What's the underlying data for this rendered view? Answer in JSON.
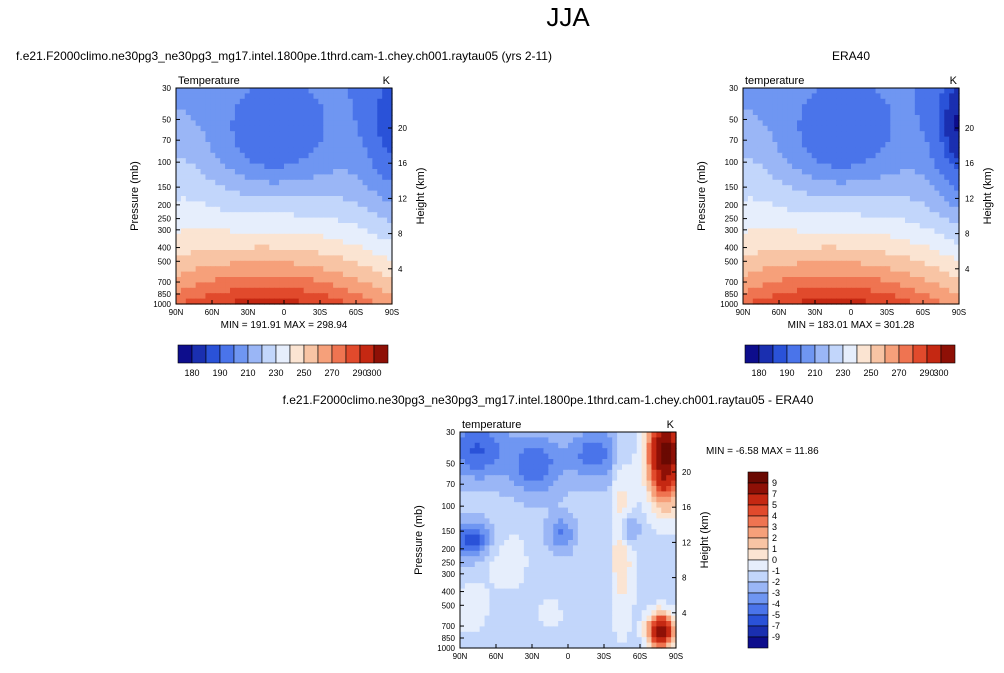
{
  "page": {
    "title": "JJA",
    "colors": {
      "background": "#ffffff",
      "text": "#000000"
    }
  },
  "chart_data": [
    {
      "type": "heatmap",
      "id": "model",
      "title": "f.e21.F2000climo.ne30pg3_ne30pg3_mg17.intel.1800pe.1thrd.cam-1.chey.ch001.raytau05 (yrs 2-11)",
      "left_label": "Temperature",
      "right_label": "K",
      "ylabel": "Pressure (mb)",
      "ylabel_right": "Height (km)",
      "xlabel": "",
      "x_ticks": [
        "90N",
        "60N",
        "30N",
        "0",
        "30S",
        "60S",
        "90S"
      ],
      "x_values": [
        90,
        60,
        30,
        0,
        -30,
        -60,
        -90
      ],
      "y_ticks": [
        "30",
        "50",
        "70",
        "100",
        "150",
        "200",
        "250",
        "300",
        "400",
        "500",
        "700",
        "850",
        "1000"
      ],
      "y_values": [
        30,
        50,
        70,
        100,
        150,
        200,
        250,
        300,
        400,
        500,
        700,
        850,
        1000
      ],
      "y_right_ticks": [
        "4",
        "8",
        "12",
        "16",
        "20"
      ],
      "y_right_values": [
        4,
        8,
        12,
        16,
        20
      ],
      "y_scale": "log",
      "ylim": [
        1000,
        30
      ],
      "xlim": [
        90,
        -90
      ],
      "stats_text": "MIN = 191.91   MAX = 298.94",
      "min": 191.91,
      "max": 298.94,
      "colorbar": {
        "orientation": "horizontal",
        "levels": [
          180,
          185,
          190,
          200,
          210,
          220,
          230,
          240,
          250,
          260,
          270,
          280,
          290,
          295,
          300
        ],
        "tick_labels": [
          "180",
          "190",
          "210",
          "230",
          "250",
          "270",
          "290",
          "300"
        ]
      }
    },
    {
      "type": "heatmap",
      "id": "obs",
      "title": "ERA40",
      "left_label": "temperature",
      "right_label": "K",
      "ylabel": "Pressure (mb)",
      "ylabel_right": "Height (km)",
      "xlabel": "",
      "x_ticks": [
        "90N",
        "60N",
        "30N",
        "0",
        "30S",
        "60S",
        "90S"
      ],
      "x_values": [
        90,
        60,
        30,
        0,
        -30,
        -60,
        -90
      ],
      "y_ticks": [
        "30",
        "50",
        "70",
        "100",
        "150",
        "200",
        "250",
        "300",
        "400",
        "500",
        "700",
        "850",
        "1000"
      ],
      "y_values": [
        30,
        50,
        70,
        100,
        150,
        200,
        250,
        300,
        400,
        500,
        700,
        850,
        1000
      ],
      "y_right_ticks": [
        "4",
        "8",
        "12",
        "16",
        "20"
      ],
      "y_right_values": [
        4,
        8,
        12,
        16,
        20
      ],
      "y_scale": "log",
      "ylim": [
        1000,
        30
      ],
      "xlim": [
        90,
        -90
      ],
      "stats_text": "MIN = 183.01   MAX = 301.28",
      "min": 183.01,
      "max": 301.28,
      "colorbar": {
        "orientation": "horizontal",
        "levels": [
          180,
          185,
          190,
          200,
          210,
          220,
          230,
          240,
          250,
          260,
          270,
          280,
          290,
          295,
          300
        ],
        "tick_labels": [
          "180",
          "190",
          "210",
          "230",
          "250",
          "270",
          "290",
          "300"
        ]
      }
    },
    {
      "type": "heatmap",
      "id": "diff",
      "title": "f.e21.F2000climo.ne30pg3_ne30pg3_mg17.intel.1800pe.1thrd.cam-1.chey.ch001.raytau05 - ERA40",
      "left_label": "temperature",
      "right_label": "K",
      "ylabel": "Pressure (mb)",
      "ylabel_right": "Height (km)",
      "xlabel": "",
      "x_ticks": [
        "90N",
        "60N",
        "30N",
        "0",
        "30S",
        "60S",
        "90S"
      ],
      "x_values": [
        90,
        60,
        30,
        0,
        -30,
        -60,
        -90
      ],
      "y_ticks": [
        "30",
        "50",
        "70",
        "100",
        "150",
        "200",
        "250",
        "300",
        "400",
        "500",
        "700",
        "850",
        "1000"
      ],
      "y_values": [
        30,
        50,
        70,
        100,
        150,
        200,
        250,
        300,
        400,
        500,
        700,
        850,
        1000
      ],
      "y_right_ticks": [
        "4",
        "8",
        "12",
        "16",
        "20"
      ],
      "y_right_values": [
        4,
        8,
        12,
        16,
        20
      ],
      "y_scale": "log",
      "ylim": [
        1000,
        30
      ],
      "xlim": [
        90,
        -90
      ],
      "stats_text": "MIN =  -6.58   MAX =  11.86",
      "min": -6.58,
      "max": 11.86,
      "colorbar": {
        "orientation": "vertical",
        "levels": [
          -9,
          -7,
          -5,
          -4,
          -3,
          -2,
          -1,
          0,
          1,
          2,
          3,
          4,
          5,
          7,
          9
        ],
        "tick_labels": [
          "9",
          "7",
          "5",
          "4",
          "3",
          "2",
          "1",
          "0",
          "-1",
          "-2",
          "-3",
          "-4",
          "-5",
          "-7",
          "-9"
        ]
      }
    }
  ],
  "palettes": {
    "abs": [
      "#0d0d8c",
      "#1a2fb0",
      "#2a52d8",
      "#4a74ea",
      "#6f96f2",
      "#9ab6f6",
      "#c2d6fb",
      "#e6eefc",
      "#fbe4d2",
      "#f8c4a4",
      "#f6a07a",
      "#ef7451",
      "#e14a2c",
      "#c52812",
      "#8e1006"
    ],
    "diff": [
      "#0d0d8c",
      "#1a2fb0",
      "#2a52d8",
      "#4a74ea",
      "#6f96f2",
      "#9ab6f6",
      "#c2d6fb",
      "#e6eefc",
      "#fbe4d2",
      "#f8c4a4",
      "#f6a07a",
      "#ef7451",
      "#e14a2c",
      "#c52812",
      "#8e1006",
      "#6a0902"
    ]
  }
}
